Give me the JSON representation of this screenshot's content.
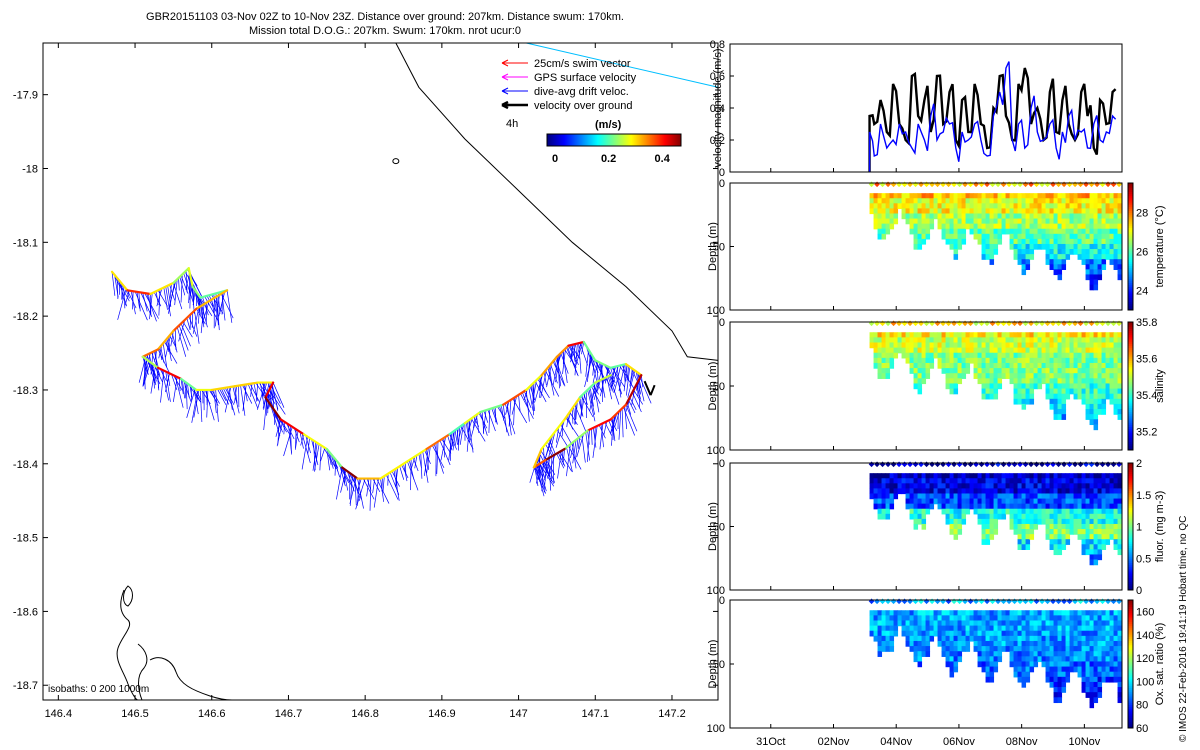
{
  "header": {
    "line1": "GBR20151103 03-Nov 02Z to 10-Nov 23Z. Distance over ground: 207km. Distance swum: 170km.",
    "line2": "Mission total D.O.G.: 207km. Swum: 170km. nrot ucur:0"
  },
  "credit": "© IMOS 22-Feb-2016 19:41:19 Hobart time, no QC",
  "colors": {
    "swim_vector": "#ff0000",
    "gps_surface": "#ff00ff",
    "drift": "#0000ff",
    "over_ground": "#000000",
    "coastline": "#000000",
    "guide_line": "#00bfff"
  },
  "chart_data": [
    {
      "type": "map",
      "id": "track-map",
      "xlim": [
        146.38,
        147.26
      ],
      "ylim": [
        -18.72,
        -17.83
      ],
      "xticks": [
        146.4,
        146.5,
        146.6,
        146.7,
        146.8,
        146.9,
        147,
        147.1,
        147.2
      ],
      "xtick_labels": [
        "146.4",
        "146.5",
        "146.6",
        "146.7",
        "146.8",
        "146.9",
        "147",
        "147.1",
        "147.2"
      ],
      "yticks": [
        -17.9,
        -18,
        -18.1,
        -18.2,
        -18.3,
        -18.4,
        -18.5,
        -18.6,
        -18.7
      ],
      "ytick_labels": [
        "-17.9",
        "-18",
        "-18.1",
        "-18.2",
        "-18.3",
        "-18.4",
        "-18.5",
        "-18.6",
        "-18.7"
      ],
      "legend": [
        {
          "label": "25cm/s swim vector",
          "color": "#ff0000"
        },
        {
          "label": "GPS surface velocity",
          "color": "#ff00ff"
        },
        {
          "label": "dive-avg drift veloc.",
          "color": "#0000ff"
        },
        {
          "label": "velocity over ground",
          "color": "#000000"
        }
      ],
      "scale_label": "4h",
      "colorbar": {
        "label": "(m/s)",
        "ticks": [
          0,
          0.2,
          0.4
        ],
        "tick_labels": [
          "0",
          "0.2",
          "0.4"
        ],
        "range": [
          0,
          0.5
        ]
      },
      "isobath_label": "isobaths: 0   200   1000m",
      "track": [
        [
          146.47,
          -18.14
        ],
        [
          146.49,
          -18.165
        ],
        [
          146.52,
          -18.17
        ],
        [
          146.55,
          -18.155
        ],
        [
          146.57,
          -18.135
        ],
        [
          146.575,
          -18.16
        ],
        [
          146.585,
          -18.175
        ],
        [
          146.62,
          -18.165
        ],
        [
          146.58,
          -18.19
        ],
        [
          146.55,
          -18.22
        ],
        [
          146.53,
          -18.245
        ],
        [
          146.51,
          -18.255
        ],
        [
          146.53,
          -18.27
        ],
        [
          146.56,
          -18.285
        ],
        [
          146.58,
          -18.3
        ],
        [
          146.6,
          -18.3
        ],
        [
          146.63,
          -18.295
        ],
        [
          146.66,
          -18.29
        ],
        [
          146.68,
          -18.29
        ],
        [
          146.67,
          -18.31
        ],
        [
          146.69,
          -18.34
        ],
        [
          146.72,
          -18.36
        ],
        [
          146.75,
          -18.38
        ],
        [
          146.77,
          -18.405
        ],
        [
          146.79,
          -18.42
        ],
        [
          146.82,
          -18.42
        ],
        [
          146.85,
          -18.4
        ],
        [
          146.88,
          -18.38
        ],
        [
          146.91,
          -18.36
        ],
        [
          146.93,
          -18.345
        ],
        [
          146.95,
          -18.33
        ],
        [
          146.98,
          -18.32
        ],
        [
          147.01,
          -18.3
        ],
        [
          147.03,
          -18.28
        ],
        [
          147.05,
          -18.255
        ],
        [
          147.065,
          -18.24
        ],
        [
          147.085,
          -18.235
        ],
        [
          147.1,
          -18.26
        ],
        [
          147.12,
          -18.27
        ],
        [
          147.14,
          -18.265
        ],
        [
          147.16,
          -18.28
        ],
        [
          147.14,
          -18.32
        ],
        [
          147.12,
          -18.34
        ],
        [
          147.09,
          -18.355
        ],
        [
          147.06,
          -18.38
        ],
        [
          147.035,
          -18.395
        ],
        [
          147.02,
          -18.405
        ],
        [
          147.03,
          -18.38
        ],
        [
          147.06,
          -18.34
        ],
        [
          147.08,
          -18.31
        ],
        [
          147.1,
          -18.29
        ],
        [
          147.12,
          -18.28
        ]
      ],
      "coastline": [
        [
          146.84,
          -17.83
        ],
        [
          146.87,
          -17.89
        ],
        [
          146.93,
          -17.96
        ],
        [
          147.0,
          -18.03
        ],
        [
          147.07,
          -18.1
        ],
        [
          147.14,
          -18.16
        ],
        [
          147.2,
          -18.22
        ],
        [
          147.22,
          -18.255
        ],
        [
          147.26,
          -18.26
        ]
      ],
      "guide_line": [
        [
          147.01,
          -17.83
        ],
        [
          147.26,
          -17.89
        ]
      ],
      "island": [
        146.84,
        -17.99
      ]
    },
    {
      "type": "line",
      "id": "velocity-panel",
      "ylabel": "velocity magnitude (m/s)",
      "ylim": [
        0,
        0.8
      ],
      "yticks": [
        0,
        0.2,
        0.4,
        0.6,
        0.8
      ],
      "ytick_labels": [
        "0",
        "0.2",
        "0.4",
        "0.6",
        "0.8"
      ],
      "xlim": [
        29.6,
        11.0
      ],
      "x": [
        3.15,
        3.3,
        3.5,
        3.7,
        3.9,
        4.1,
        4.3,
        4.5,
        4.7,
        4.9,
        5.1,
        5.3,
        5.5,
        5.7,
        5.9,
        6.1,
        6.3,
        6.5,
        6.7,
        6.9,
        7.1,
        7.3,
        7.5,
        7.7,
        7.9,
        8.1,
        8.3,
        8.5,
        8.7,
        8.9,
        9.1,
        9.3,
        9.5,
        9.7,
        9.9,
        10.1,
        10.3,
        10.5,
        10.7,
        10.9
      ],
      "series": [
        {
          "name": "",
          "color": "#000000",
          "values": [
            0.35,
            0.3,
            0.45,
            0.25,
            0.55,
            0.3,
            0.2,
            0.6,
            0.35,
            0.45,
            0.25,
            0.6,
            0.3,
            0.5,
            0.2,
            0.45,
            0.25,
            0.55,
            0.3,
            0.15,
            0.4,
            0.6,
            0.35,
            0.2,
            0.55,
            0.65,
            0.3,
            0.4,
            0.2,
            0.5,
            0.25,
            0.45,
            0.3,
            0.2,
            0.5,
            0.35,
            0.15,
            0.45,
            0.3,
            0.5
          ]
        },
        {
          "name": "",
          "color": "#0000ff",
          "values": [
            0.25,
            0.1,
            0.3,
            0.15,
            0.2,
            0.3,
            0.25,
            0.15,
            0.3,
            0.2,
            0.35,
            0.2,
            0.25,
            0.3,
            0.15,
            0.25,
            0.2,
            0.3,
            0.2,
            0.1,
            0.35,
            0.5,
            0.65,
            0.2,
            0.3,
            0.15,
            0.4,
            0.25,
            0.2,
            0.3,
            0.15,
            0.25,
            0.35,
            0.2,
            0.25,
            0.15,
            0.3,
            0.2,
            0.25,
            0.35
          ]
        }
      ]
    },
    {
      "type": "heatmap",
      "id": "temperature-panel",
      "ylabel": "Depth (m)",
      "ylim": [
        0,
        100
      ],
      "yticks": [
        0,
        50,
        100
      ],
      "ytick_labels": [
        "0",
        "50",
        "100"
      ],
      "colorbar": {
        "label": "temperature (°C)",
        "range": [
          23,
          29.5
        ],
        "ticks": [
          24,
          26,
          28
        ],
        "tick_labels": [
          "24",
          "26",
          "28"
        ]
      },
      "surface_value": 27.5,
      "column_values": [
        27.5,
        27,
        26.5,
        26,
        25.5,
        24.5,
        24
      ]
    },
    {
      "type": "heatmap",
      "id": "salinity-panel",
      "ylabel": "Depth (m)",
      "ylim": [
        0,
        100
      ],
      "yticks": [
        0,
        50,
        100
      ],
      "ytick_labels": [
        "0",
        "50",
        "100"
      ],
      "colorbar": {
        "label": "salinity",
        "range": [
          35.1,
          35.8
        ],
        "ticks": [
          35.2,
          35.4,
          35.6,
          35.8
        ],
        "tick_labels": [
          "35.2",
          "35.4",
          "35.6",
          "35.8"
        ]
      },
      "surface_value": 35.55,
      "column_values": [
        35.55,
        35.5,
        35.45,
        35.45,
        35.4,
        35.35,
        35.3
      ]
    },
    {
      "type": "heatmap",
      "id": "fluorescence-panel",
      "ylabel": "Depth (m)",
      "ylim": [
        0,
        100
      ],
      "yticks": [
        0,
        50,
        100
      ],
      "ytick_labels": [
        "0",
        "50",
        "100"
      ],
      "colorbar": {
        "label": "fluor. (mg m-3)",
        "range": [
          0,
          2
        ],
        "ticks": [
          0,
          0.5,
          1,
          1.5,
          2
        ],
        "tick_labels": [
          "0",
          "0.5",
          "1",
          "1.5",
          "2"
        ]
      },
      "surface_value": 0.1,
      "column_values": [
        0.1,
        0.2,
        0.4,
        0.8,
        1.0,
        0.7,
        0.5
      ]
    },
    {
      "type": "heatmap",
      "id": "oxygen-panel",
      "ylabel": "Depth (m)",
      "ylim": [
        0,
        100
      ],
      "yticks": [
        0,
        50,
        100
      ],
      "ytick_labels": [
        "0",
        "50",
        "100"
      ],
      "colorbar": {
        "label": "Ox. sat. ratio (%)",
        "range": [
          60,
          170
        ],
        "ticks": [
          60,
          80,
          100,
          120,
          140,
          160
        ],
        "tick_labels": [
          "60",
          "80",
          "100",
          "120",
          "140",
          "160"
        ]
      },
      "surface_value": 92,
      "column_values": [
        92,
        92,
        90,
        88,
        85,
        80,
        75
      ]
    }
  ],
  "time_axis": {
    "ticks": [
      31,
      2,
      4,
      6,
      8,
      10
    ],
    "tick_labels": [
      "31Oct",
      "02Nov",
      "04Nov",
      "06Nov",
      "08Nov",
      "10Nov"
    ]
  }
}
